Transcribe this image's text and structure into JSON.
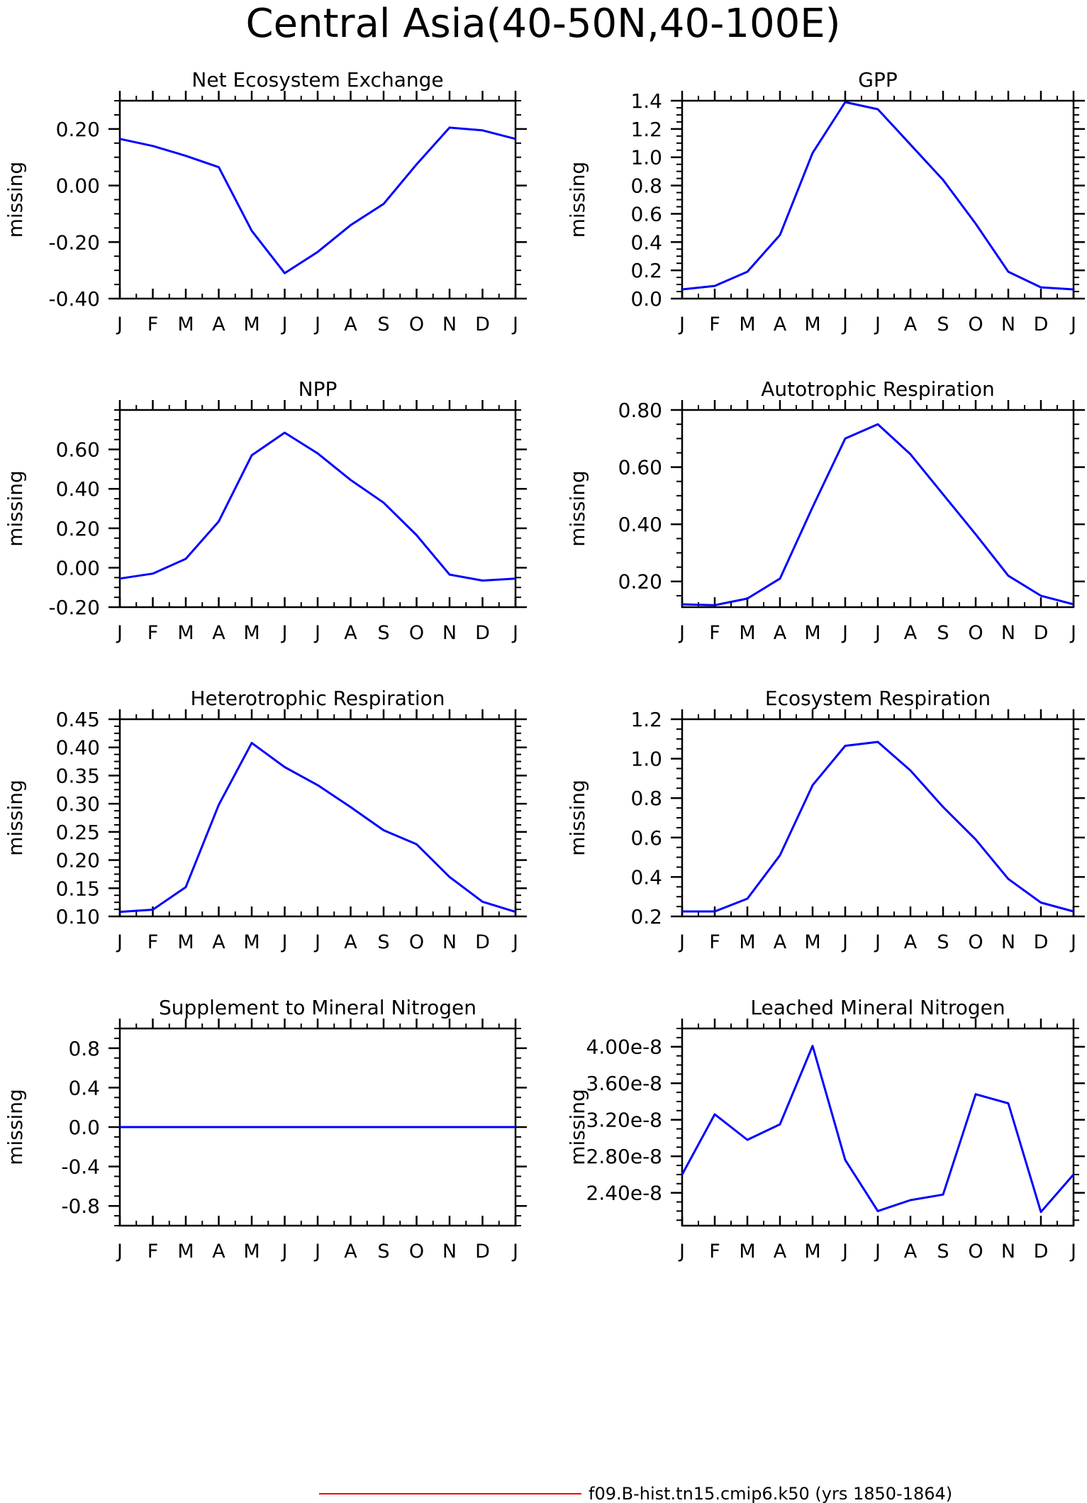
{
  "page_title": "Central Asia(40-50N,40-100E)",
  "legend": {
    "label": "f09.B-hist.tn15.cmip6.k50 (yrs 1850-1864)",
    "line_color": "#ff0000"
  },
  "colors": {
    "series_line": "#0000ff",
    "axes": "#000000"
  },
  "chart_data": [
    {
      "type": "line",
      "title": "Net Ecosystem Exchange",
      "ylabel": "missing",
      "xlabel": "",
      "categories": [
        "J",
        "F",
        "M",
        "A",
        "M",
        "J",
        "J",
        "A",
        "S",
        "O",
        "N",
        "D",
        "J"
      ],
      "values": [
        0.165,
        0.14,
        0.105,
        0.065,
        -0.16,
        -0.31,
        -0.235,
        -0.14,
        -0.065,
        0.075,
        0.205,
        0.195,
        0.165
      ],
      "ylim": [
        -0.4,
        0.3
      ],
      "yticks": [
        -0.4,
        -0.2,
        0.0,
        0.2
      ],
      "ytick_labels": [
        "-0.40",
        "-0.20",
        "0.00",
        "0.20"
      ],
      "grid": false
    },
    {
      "type": "line",
      "title": "GPP",
      "ylabel": "missing",
      "xlabel": "",
      "categories": [
        "J",
        "F",
        "M",
        "A",
        "M",
        "J",
        "J",
        "A",
        "S",
        "O",
        "N",
        "D",
        "J"
      ],
      "values": [
        0.065,
        0.09,
        0.19,
        0.45,
        1.03,
        1.39,
        1.34,
        1.09,
        0.84,
        0.53,
        0.19,
        0.08,
        0.065
      ],
      "ylim": [
        0,
        1.4
      ],
      "yticks": [
        0,
        0.2,
        0.4,
        0.6,
        0.8,
        1.0,
        1.2,
        1.4
      ],
      "ytick_labels": [
        "0.0",
        "0.2",
        "0.4",
        "0.6",
        "0.8",
        "1.0",
        "1.2",
        "1.4"
      ],
      "grid": false
    },
    {
      "type": "line",
      "title": "NPP",
      "ylabel": "missing",
      "xlabel": "",
      "categories": [
        "J",
        "F",
        "M",
        "A",
        "M",
        "J",
        "J",
        "A",
        "S",
        "O",
        "N",
        "D",
        "J"
      ],
      "values": [
        -0.055,
        -0.03,
        0.045,
        0.235,
        0.57,
        0.685,
        0.58,
        0.445,
        0.33,
        0.165,
        -0.035,
        -0.065,
        -0.055
      ],
      "ylim": [
        -0.2,
        0.8
      ],
      "yticks": [
        -0.2,
        0.0,
        0.2,
        0.4,
        0.6
      ],
      "ytick_labels": [
        "-0.20",
        "0.00",
        "0.20",
        "0.40",
        "0.60"
      ],
      "grid": false
    },
    {
      "type": "line",
      "title": "Autotrophic Respiration",
      "ylabel": "missing",
      "xlabel": "",
      "categories": [
        "J",
        "F",
        "M",
        "A",
        "M",
        "J",
        "J",
        "A",
        "S",
        "O",
        "N",
        "D",
        "J"
      ],
      "values": [
        0.12,
        0.117,
        0.14,
        0.21,
        0.46,
        0.7,
        0.75,
        0.645,
        0.505,
        0.365,
        0.22,
        0.15,
        0.12
      ],
      "ylim": [
        0.11,
        0.8
      ],
      "yticks": [
        0.2,
        0.4,
        0.6,
        0.8
      ],
      "ytick_labels": [
        "0.20",
        "0.40",
        "0.60",
        "0.80"
      ],
      "grid": false
    },
    {
      "type": "line",
      "title": "Heterotrophic Respiration",
      "ylabel": "missing",
      "xlabel": "",
      "categories": [
        "J",
        "F",
        "M",
        "A",
        "M",
        "J",
        "J",
        "A",
        "S",
        "O",
        "N",
        "D",
        "J"
      ],
      "values": [
        0.108,
        0.112,
        0.152,
        0.298,
        0.408,
        0.365,
        0.333,
        0.294,
        0.253,
        0.228,
        0.17,
        0.126,
        0.108
      ],
      "ylim": [
        0.1,
        0.45
      ],
      "yticks": [
        0.1,
        0.15,
        0.2,
        0.25,
        0.3,
        0.35,
        0.4,
        0.45
      ],
      "ytick_labels": [
        "0.10",
        "0.15",
        "0.20",
        "0.25",
        "0.30",
        "0.35",
        "0.40",
        "0.45"
      ],
      "grid": false
    },
    {
      "type": "line",
      "title": "Ecosystem Respiration",
      "ylabel": "missing",
      "xlabel": "",
      "categories": [
        "J",
        "F",
        "M",
        "A",
        "M",
        "J",
        "J",
        "A",
        "S",
        "O",
        "N",
        "D",
        "J"
      ],
      "values": [
        0.225,
        0.225,
        0.29,
        0.51,
        0.865,
        1.065,
        1.085,
        0.94,
        0.755,
        0.59,
        0.39,
        0.27,
        0.225
      ],
      "ylim": [
        0.2,
        1.2
      ],
      "yticks": [
        0.2,
        0.4,
        0.6,
        0.8,
        1.0,
        1.2
      ],
      "ytick_labels": [
        "0.2",
        "0.4",
        "0.6",
        "0.8",
        "1.0",
        "1.2"
      ],
      "grid": false
    },
    {
      "type": "line",
      "title": "Supplement to Mineral Nitrogen",
      "ylabel": "missing",
      "xlabel": "",
      "categories": [
        "J",
        "F",
        "M",
        "A",
        "M",
        "J",
        "J",
        "A",
        "S",
        "O",
        "N",
        "D",
        "J"
      ],
      "values": [
        0,
        0,
        0,
        0,
        0,
        0,
        0,
        0,
        0,
        0,
        0,
        0,
        0
      ],
      "ylim": [
        -1.0,
        1.0
      ],
      "yticks": [
        -0.8,
        -0.4,
        0.0,
        0.4,
        0.8
      ],
      "ytick_labels": [
        "-0.8",
        "-0.4",
        "0.0",
        "0.4",
        "0.8"
      ],
      "grid": false
    },
    {
      "type": "line",
      "title": "Leached Mineral Nitrogen",
      "ylabel": "missing",
      "xlabel": "",
      "categories": [
        "J",
        "F",
        "M",
        "A",
        "M",
        "J",
        "J",
        "A",
        "S",
        "O",
        "N",
        "D",
        "J"
      ],
      "values": [
        2.6e-08,
        3.26e-08,
        2.98e-08,
        3.15e-08,
        4.01e-08,
        2.76e-08,
        2.2e-08,
        2.32e-08,
        2.38e-08,
        3.48e-08,
        3.38e-08,
        2.19e-08,
        2.6e-08
      ],
      "ylim": [
        2.04e-08,
        4.2e-08
      ],
      "yticks": [
        2.4e-08,
        2.8e-08,
        3.2e-08,
        3.6e-08,
        4e-08
      ],
      "ytick_labels": [
        "2.40e-8",
        "2.80e-8",
        "3.20e-8",
        "3.60e-8",
        "4.00e-8"
      ],
      "grid": false
    }
  ]
}
